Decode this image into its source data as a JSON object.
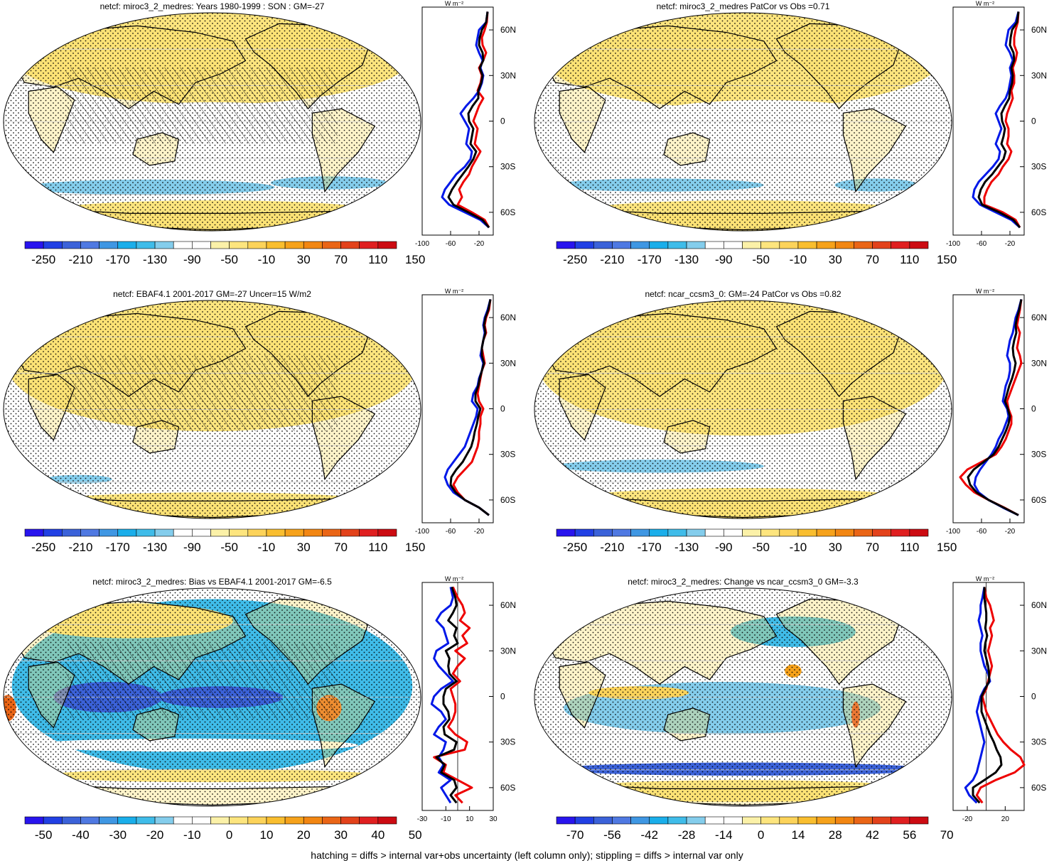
{
  "footer_note": "hatching = diffs > internal var+obs uncertainty (left column only); stippling = diffs > internal var only",
  "colors": {
    "zonal_model": "#0018e8",
    "zonal_obs": "#ee0000",
    "zonal_mean": "#000000",
    "ocean_white": "#ffffff",
    "land_line": "#000000"
  },
  "palette_absolute": [
    "#2814ee",
    "#2140e4",
    "#3b62d9",
    "#4f79e2",
    "#3f97e3",
    "#1aaeea",
    "#3fbce9",
    "#84cdec",
    "#ffffff",
    "#ffffff",
    "#fbf1a8",
    "#fde57e",
    "#fcd35a",
    "#f9be2f",
    "#f6a21b",
    "#f28612",
    "#ea6516",
    "#e3421b",
    "#e01f20",
    "#cc0b12"
  ],
  "palette_difference": [
    "#2814ee",
    "#2140e4",
    "#3b62d9",
    "#4f79e2",
    "#3f97e3",
    "#1aaeea",
    "#3fbce9",
    "#84cdec",
    "#ffffff",
    "#ffffff",
    "#fbf1a8",
    "#fde57e",
    "#fcd35a",
    "#f9be2f",
    "#f6a21b",
    "#f28612",
    "#ea6516",
    "#e3421b",
    "#e01f20",
    "#cc0b12"
  ],
  "chart_data": [
    {
      "type": "heatmap",
      "id": "p1",
      "title": "netcf: miroc3_2_medres: Years 1980-1999 : SON : GM=-27",
      "colorbar_ticks": [
        "-250",
        "-210",
        "-170",
        "-130",
        "-90",
        "-50",
        "-10",
        "30",
        "70",
        "110",
        "150"
      ],
      "map_style": "absolute_model",
      "zonal": {
        "unit_label": "W m⁻²",
        "xticks": [
          "-100",
          "-60",
          "-20"
        ],
        "xlim": [
          -100,
          0
        ],
        "lat_ticks": [
          "60N",
          "30N",
          "0",
          "30S",
          "60S"
        ],
        "lat": [
          72,
          65,
          60,
          55,
          50,
          45,
          40,
          35,
          30,
          25,
          20,
          15,
          10,
          5,
          0,
          -5,
          -10,
          -15,
          -20,
          -25,
          -30,
          -35,
          -40,
          -45,
          -50,
          -55,
          -60,
          -65,
          -70
        ],
        "model": [
          -8,
          -10,
          -20,
          -22,
          -24,
          -20,
          -15,
          -18,
          -14,
          -16,
          -20,
          -28,
          -38,
          -46,
          -40,
          -34,
          -36,
          -38,
          -30,
          -32,
          -40,
          -52,
          -60,
          -68,
          -72,
          -62,
          -40,
          -18,
          -6
        ],
        "obs": [
          -8,
          -9,
          -12,
          -16,
          -15,
          -10,
          -14,
          -20,
          -16,
          -18,
          -22,
          -14,
          -20,
          -24,
          -28,
          -22,
          -24,
          -26,
          -18,
          -24,
          -30,
          -34,
          -42,
          -48,
          -44,
          -50,
          -30,
          -12,
          -6
        ],
        "mean": [
          -8,
          -10,
          -16,
          -19,
          -20,
          -15,
          -14,
          -19,
          -15,
          -17,
          -21,
          -21,
          -29,
          -35,
          -34,
          -28,
          -30,
          -32,
          -24,
          -28,
          -35,
          -43,
          -51,
          -58,
          -63,
          -56,
          -35,
          -15,
          -6
        ]
      }
    },
    {
      "type": "heatmap",
      "id": "p2",
      "title": "netcf: miroc3_2_medres PatCor vs Obs =0.71",
      "colorbar_ticks": [
        "-250",
        "-210",
        "-170",
        "-130",
        "-90",
        "-50",
        "-10",
        "30",
        "70",
        "110",
        "150"
      ],
      "map_style": "absolute_model2",
      "zonal": {
        "unit_label": "W m⁻²",
        "xticks": [
          "-100",
          "-60",
          "-20"
        ],
        "xlim": [
          -100,
          0
        ],
        "lat_ticks": [
          "60N",
          "30N",
          "0",
          "30S",
          "60S"
        ],
        "lat": [
          72,
          65,
          60,
          55,
          50,
          45,
          40,
          35,
          30,
          25,
          20,
          15,
          10,
          5,
          0,
          -5,
          -10,
          -15,
          -20,
          -25,
          -30,
          -35,
          -40,
          -45,
          -50,
          -55,
          -60,
          -65,
          -70
        ],
        "model": [
          -8,
          -12,
          -22,
          -24,
          -26,
          -20,
          -16,
          -20,
          -18,
          -20,
          -22,
          -26,
          -34,
          -40,
          -36,
          -32,
          -36,
          -40,
          -34,
          -36,
          -44,
          -54,
          -64,
          -70,
          -72,
          -62,
          -40,
          -18,
          -6
        ],
        "obs": [
          -8,
          -9,
          -12,
          -14,
          -14,
          -10,
          -12,
          -16,
          -14,
          -14,
          -18,
          -16,
          -20,
          -24,
          -26,
          -22,
          -22,
          -24,
          -18,
          -22,
          -30,
          -36,
          -46,
          -52,
          -56,
          -56,
          -30,
          -12,
          -6
        ],
        "mean": [
          -8,
          -10,
          -17,
          -19,
          -20,
          -15,
          -14,
          -18,
          -16,
          -17,
          -20,
          -21,
          -27,
          -32,
          -31,
          -27,
          -29,
          -32,
          -26,
          -29,
          -37,
          -45,
          -55,
          -61,
          -64,
          -59,
          -35,
          -15,
          -6
        ]
      }
    },
    {
      "type": "heatmap",
      "id": "p3",
      "title": "netcf: EBAF4.1 2001-2017 GM=-27 Uncer=15 W/m2",
      "colorbar_ticks": [
        "-250",
        "-210",
        "-170",
        "-130",
        "-90",
        "-50",
        "-10",
        "30",
        "70",
        "110",
        "150"
      ],
      "map_style": "absolute_obs",
      "zonal": {
        "unit_label": "W m⁻²",
        "xticks": [
          "-100",
          "-60",
          "-20"
        ],
        "xlim": [
          -100,
          0
        ],
        "lat_ticks": [
          "60N",
          "30N",
          "0",
          "30S",
          "60S"
        ],
        "lat": [
          72,
          65,
          60,
          55,
          50,
          45,
          40,
          35,
          30,
          25,
          20,
          15,
          10,
          5,
          0,
          -5,
          -10,
          -15,
          -20,
          -25,
          -30,
          -35,
          -40,
          -45,
          -50,
          -55,
          -60,
          -65,
          -70
        ],
        "model": [
          -4,
          -8,
          -12,
          -14,
          -12,
          -14,
          -16,
          -18,
          -14,
          -16,
          -20,
          -22,
          -28,
          -30,
          -22,
          -24,
          -28,
          -32,
          -36,
          -40,
          -48,
          -56,
          -64,
          -68,
          -64,
          -56,
          -40,
          -20,
          -6
        ],
        "obs": [
          -4,
          -6,
          -10,
          -12,
          -10,
          -14,
          -16,
          -14,
          -12,
          -16,
          -18,
          -20,
          -22,
          -20,
          -14,
          -18,
          -18,
          -20,
          -20,
          -22,
          -26,
          -30,
          -40,
          -50,
          -56,
          -50,
          -40,
          -20,
          -6
        ],
        "mean": [
          -4,
          -7,
          -11,
          -13,
          -11,
          -14,
          -16,
          -16,
          -13,
          -16,
          -19,
          -21,
          -25,
          -25,
          -18,
          -21,
          -23,
          -26,
          -28,
          -31,
          -37,
          -43,
          -52,
          -59,
          -60,
          -53,
          -40,
          -20,
          -6
        ]
      }
    },
    {
      "type": "heatmap",
      "id": "p4",
      "title": "netcf: ncar_ccsm3_0: GM=-24 PatCor vs Obs =0.82",
      "colorbar_ticks": [
        "-250",
        "-210",
        "-170",
        "-130",
        "-90",
        "-50",
        "-10",
        "30",
        "70",
        "110",
        "150"
      ],
      "map_style": "absolute_ccsm",
      "zonal": {
        "unit_label": "W m⁻²",
        "xticks": [
          "-100",
          "-60",
          "-20"
        ],
        "xlim": [
          -100,
          0
        ],
        "lat_ticks": [
          "60N",
          "30N",
          "0",
          "30S",
          "60S"
        ],
        "lat": [
          72,
          65,
          60,
          55,
          50,
          45,
          40,
          35,
          30,
          25,
          20,
          15,
          10,
          5,
          0,
          -5,
          -10,
          -15,
          -20,
          -25,
          -30,
          -35,
          -40,
          -45,
          -50,
          -55,
          -60,
          -65,
          -70
        ],
        "model": [
          -4,
          -8,
          -12,
          -14,
          -16,
          -20,
          -22,
          -24,
          -20,
          -20,
          -22,
          -26,
          -28,
          -30,
          -24,
          -22,
          -26,
          -30,
          -36,
          -40,
          -46,
          -54,
          -62,
          -68,
          -70,
          -64,
          -50,
          -30,
          -8
        ],
        "obs": [
          -4,
          -6,
          -8,
          -10,
          -6,
          -8,
          -10,
          -6,
          -4,
          -8,
          -12,
          -16,
          -20,
          -24,
          -22,
          -18,
          -18,
          -22,
          -26,
          -32,
          -40,
          -60,
          -80,
          -90,
          -82,
          -70,
          -50,
          -28,
          -8
        ],
        "mean": [
          -4,
          -7,
          -10,
          -12,
          -11,
          -14,
          -16,
          -15,
          -12,
          -14,
          -17,
          -21,
          -24,
          -27,
          -23,
          -20,
          -22,
          -26,
          -31,
          -36,
          -43,
          -57,
          -71,
          -79,
          -76,
          -67,
          -50,
          -29,
          -8
        ]
      }
    },
    {
      "type": "heatmap",
      "id": "p5",
      "title": "netcf: miroc3_2_medres: Bias vs EBAF4.1 2001-2017  GM=-6.5",
      "colorbar_ticks": [
        "-50",
        "-40",
        "-30",
        "-20",
        "-10",
        "0",
        "10",
        "20",
        "30",
        "40",
        "50"
      ],
      "map_style": "bias",
      "zonal": {
        "unit_label": "W m⁻²",
        "xticks": [
          "-30",
          "-10",
          "10",
          "30"
        ],
        "xlim": [
          -30,
          30
        ],
        "lat_ticks": [
          "60N",
          "30N",
          "0",
          "30S",
          "60S"
        ],
        "lat": [
          72,
          65,
          60,
          55,
          50,
          45,
          40,
          35,
          30,
          25,
          20,
          15,
          10,
          5,
          0,
          -5,
          -10,
          -15,
          -20,
          -25,
          -30,
          -35,
          -40,
          -45,
          -50,
          -55,
          -60,
          -65,
          -70
        ],
        "model": [
          -6,
          -4,
          -6,
          -14,
          -18,
          -12,
          -10,
          -8,
          -18,
          -20,
          -16,
          -10,
          -4,
          -14,
          -20,
          -22,
          -14,
          -10,
          -16,
          -20,
          -10,
          -12,
          -16,
          -12,
          -16,
          -6,
          -14,
          -10,
          -6
        ],
        "obs": [
          -4,
          0,
          4,
          6,
          2,
          10,
          4,
          8,
          -2,
          6,
          0,
          -4,
          2,
          -6,
          -4,
          -2,
          -2,
          -4,
          -8,
          -2,
          8,
          6,
          -20,
          -10,
          -12,
          0,
          12,
          -2,
          4
        ],
        "mean": [
          -5,
          -2,
          -1,
          -4,
          -8,
          -1,
          -3,
          0,
          -10,
          -7,
          -8,
          -7,
          -1,
          -10,
          -12,
          -12,
          -8,
          -7,
          -12,
          -11,
          -1,
          -3,
          -18,
          -11,
          -14,
          -3,
          -1,
          -6,
          -1
        ]
      }
    },
    {
      "type": "heatmap",
      "id": "p6",
      "title": "netcf: miroc3_2_medres: Change vs ncar_ccsm3_0 GM=-3.3",
      "colorbar_ticks": [
        "-70",
        "-56",
        "-42",
        "-28",
        "-14",
        "0",
        "14",
        "28",
        "42",
        "56",
        "70"
      ],
      "map_style": "change",
      "zonal": {
        "unit_label": "W m⁻²",
        "xticks": [
          "-20",
          "20"
        ],
        "xlim": [
          -35,
          40
        ],
        "lat_ticks": [
          "60N",
          "30N",
          "0",
          "30S",
          "60S"
        ],
        "lat": [
          72,
          65,
          60,
          55,
          50,
          45,
          40,
          35,
          30,
          25,
          20,
          15,
          10,
          5,
          0,
          -5,
          -10,
          -15,
          -20,
          -25,
          -30,
          -35,
          -40,
          -45,
          -50,
          -55,
          -60,
          -65,
          -70
        ],
        "model": [
          -2,
          -4,
          -6,
          -6,
          -8,
          -6,
          -4,
          -6,
          -6,
          -4,
          -2,
          2,
          4,
          -2,
          -6,
          -8,
          -10,
          -8,
          -6,
          -4,
          -2,
          -4,
          -6,
          -8,
          -10,
          -14,
          -22,
          -18,
          -10
        ],
        "obs": [
          -2,
          0,
          4,
          6,
          8,
          4,
          6,
          4,
          2,
          4,
          6,
          4,
          2,
          0,
          -4,
          -2,
          0,
          4,
          8,
          12,
          18,
          26,
          36,
          40,
          30,
          10,
          -6,
          -10,
          -4
        ],
        "mean": [
          -2,
          -2,
          -1,
          0,
          0,
          -1,
          1,
          -1,
          -2,
          0,
          2,
          3,
          3,
          -1,
          -5,
          -5,
          -5,
          -2,
          1,
          4,
          8,
          11,
          15,
          16,
          10,
          -2,
          -14,
          -14,
          -7
        ]
      }
    }
  ]
}
